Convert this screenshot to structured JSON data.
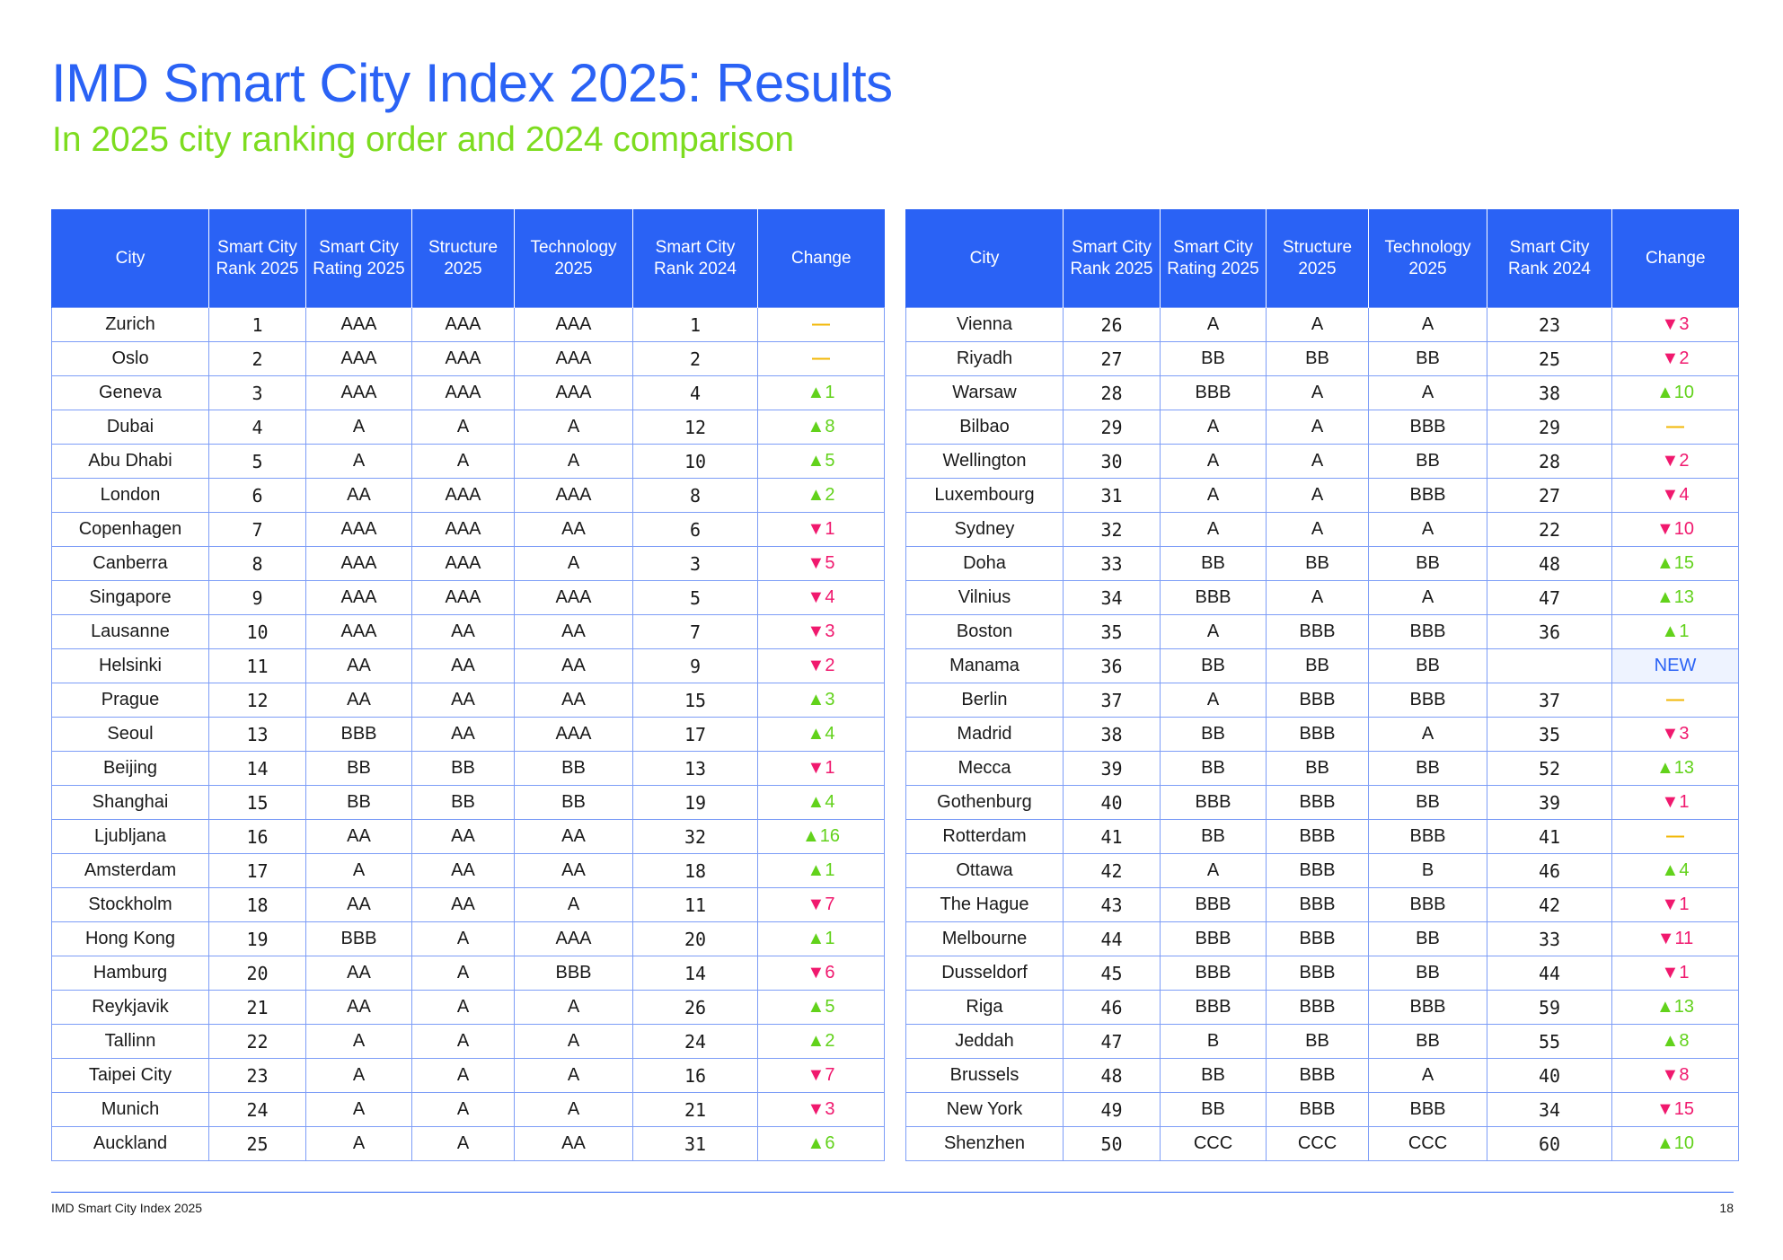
{
  "title": "IMD Smart City Index 2025: Results",
  "subtitle": "In 2025 city ranking order and 2024 comparison",
  "colors": {
    "accent": "#2a62f5",
    "subtitle": "#7ddc1f",
    "up": "#62d21b",
    "down": "#f0196e",
    "same": "#f2b705"
  },
  "headers": [
    "City",
    "Smart City Rank 2025",
    "Smart City Rating 2025",
    "Structure 2025",
    "Technology 2025",
    "Smart City Rank 2024",
    "Change"
  ],
  "left_rows": [
    {
      "city": "Zurich",
      "rank": "1",
      "rating": "AAA",
      "structure": "AAA",
      "technology": "AAA",
      "rank2024": "1",
      "change": "—",
      "dir": "same"
    },
    {
      "city": "Oslo",
      "rank": "2",
      "rating": "AAA",
      "structure": "AAA",
      "technology": "AAA",
      "rank2024": "2",
      "change": "—",
      "dir": "same"
    },
    {
      "city": "Geneva",
      "rank": "3",
      "rating": "AAA",
      "structure": "AAA",
      "technology": "AAA",
      "rank2024": "4",
      "change": "▲1",
      "dir": "up"
    },
    {
      "city": "Dubai",
      "rank": "4",
      "rating": "A",
      "structure": "A",
      "technology": "A",
      "rank2024": "12",
      "change": "▲8",
      "dir": "up"
    },
    {
      "city": "Abu Dhabi",
      "rank": "5",
      "rating": "A",
      "structure": "A",
      "technology": "A",
      "rank2024": "10",
      "change": "▲5",
      "dir": "up"
    },
    {
      "city": "London",
      "rank": "6",
      "rating": "AA",
      "structure": "AAA",
      "technology": "AAA",
      "rank2024": "8",
      "change": "▲2",
      "dir": "up"
    },
    {
      "city": "Copenhagen",
      "rank": "7",
      "rating": "AAA",
      "structure": "AAA",
      "technology": "AA",
      "rank2024": "6",
      "change": "▼1",
      "dir": "down"
    },
    {
      "city": "Canberra",
      "rank": "8",
      "rating": "AAA",
      "structure": "AAA",
      "technology": "A",
      "rank2024": "3",
      "change": "▼5",
      "dir": "down"
    },
    {
      "city": "Singapore",
      "rank": "9",
      "rating": "AAA",
      "structure": "AAA",
      "technology": "AAA",
      "rank2024": "5",
      "change": "▼4",
      "dir": "down"
    },
    {
      "city": "Lausanne",
      "rank": "10",
      "rating": "AAA",
      "structure": "AA",
      "technology": "AA",
      "rank2024": "7",
      "change": "▼3",
      "dir": "down"
    },
    {
      "city": "Helsinki",
      "rank": "11",
      "rating": "AA",
      "structure": "AA",
      "technology": "AA",
      "rank2024": "9",
      "change": "▼2",
      "dir": "down"
    },
    {
      "city": "Prague",
      "rank": "12",
      "rating": "AA",
      "structure": "AA",
      "technology": "AA",
      "rank2024": "15",
      "change": "▲3",
      "dir": "up"
    },
    {
      "city": "Seoul",
      "rank": "13",
      "rating": "BBB",
      "structure": "AA",
      "technology": "AAA",
      "rank2024": "17",
      "change": "▲4",
      "dir": "up"
    },
    {
      "city": "Beijing",
      "rank": "14",
      "rating": "BB",
      "structure": "BB",
      "technology": "BB",
      "rank2024": "13",
      "change": "▼1",
      "dir": "down"
    },
    {
      "city": "Shanghai",
      "rank": "15",
      "rating": "BB",
      "structure": "BB",
      "technology": "BB",
      "rank2024": "19",
      "change": "▲4",
      "dir": "up"
    },
    {
      "city": "Ljubljana",
      "rank": "16",
      "rating": "AA",
      "structure": "AA",
      "technology": "AA",
      "rank2024": "32",
      "change": "▲16",
      "dir": "up"
    },
    {
      "city": "Amsterdam",
      "rank": "17",
      "rating": "A",
      "structure": "AA",
      "technology": "AA",
      "rank2024": "18",
      "change": "▲1",
      "dir": "up"
    },
    {
      "city": "Stockholm",
      "rank": "18",
      "rating": "AA",
      "structure": "AA",
      "technology": "A",
      "rank2024": "11",
      "change": "▼7",
      "dir": "down"
    },
    {
      "city": "Hong Kong",
      "rank": "19",
      "rating": "BBB",
      "structure": "A",
      "technology": "AAA",
      "rank2024": "20",
      "change": "▲1",
      "dir": "up"
    },
    {
      "city": "Hamburg",
      "rank": "20",
      "rating": "AA",
      "structure": "A",
      "technology": "BBB",
      "rank2024": "14",
      "change": "▼6",
      "dir": "down"
    },
    {
      "city": "Reykjavik",
      "rank": "21",
      "rating": "AA",
      "structure": "A",
      "technology": "A",
      "rank2024": "26",
      "change": "▲5",
      "dir": "up"
    },
    {
      "city": "Tallinn",
      "rank": "22",
      "rating": "A",
      "structure": "A",
      "technology": "A",
      "rank2024": "24",
      "change": "▲2",
      "dir": "up"
    },
    {
      "city": "Taipei City",
      "rank": "23",
      "rating": "A",
      "structure": "A",
      "technology": "A",
      "rank2024": "16",
      "change": "▼7",
      "dir": "down"
    },
    {
      "city": "Munich",
      "rank": "24",
      "rating": "A",
      "structure": "A",
      "technology": "A",
      "rank2024": "21",
      "change": "▼3",
      "dir": "down"
    },
    {
      "city": "Auckland",
      "rank": "25",
      "rating": "A",
      "structure": "A",
      "technology": "AA",
      "rank2024": "31",
      "change": "▲6",
      "dir": "up"
    }
  ],
  "right_rows": [
    {
      "city": "Vienna",
      "rank": "26",
      "rating": "A",
      "structure": "A",
      "technology": "A",
      "rank2024": "23",
      "change": "▼3",
      "dir": "down"
    },
    {
      "city": "Riyadh",
      "rank": "27",
      "rating": "BB",
      "structure": "BB",
      "technology": "BB",
      "rank2024": "25",
      "change": "▼2",
      "dir": "down"
    },
    {
      "city": "Warsaw",
      "rank": "28",
      "rating": "BBB",
      "structure": "A",
      "technology": "A",
      "rank2024": "38",
      "change": "▲10",
      "dir": "up"
    },
    {
      "city": "Bilbao",
      "rank": "29",
      "rating": "A",
      "structure": "A",
      "technology": "BBB",
      "rank2024": "29",
      "change": "—",
      "dir": "same"
    },
    {
      "city": "Wellington",
      "rank": "30",
      "rating": "A",
      "structure": "A",
      "technology": "BB",
      "rank2024": "28",
      "change": "▼2",
      "dir": "down"
    },
    {
      "city": "Luxembourg",
      "rank": "31",
      "rating": "A",
      "structure": "A",
      "technology": "BBB",
      "rank2024": "27",
      "change": "▼4",
      "dir": "down"
    },
    {
      "city": "Sydney",
      "rank": "32",
      "rating": "A",
      "structure": "A",
      "technology": "A",
      "rank2024": "22",
      "change": "▼10",
      "dir": "down"
    },
    {
      "city": "Doha",
      "rank": "33",
      "rating": "BB",
      "structure": "BB",
      "technology": "BB",
      "rank2024": "48",
      "change": "▲15",
      "dir": "up"
    },
    {
      "city": "Vilnius",
      "rank": "34",
      "rating": "BBB",
      "structure": "A",
      "technology": "A",
      "rank2024": "47",
      "change": "▲13",
      "dir": "up"
    },
    {
      "city": "Boston",
      "rank": "35",
      "rating": "A",
      "structure": "BBB",
      "technology": "BBB",
      "rank2024": "36",
      "change": "▲1",
      "dir": "up"
    },
    {
      "city": "Manama",
      "rank": "36",
      "rating": "BB",
      "structure": "BB",
      "technology": "BB",
      "rank2024": "",
      "change": "NEW",
      "dir": "new"
    },
    {
      "city": "Berlin",
      "rank": "37",
      "rating": "A",
      "structure": "BBB",
      "technology": "BBB",
      "rank2024": "37",
      "change": "—",
      "dir": "same"
    },
    {
      "city": "Madrid",
      "rank": "38",
      "rating": "BB",
      "structure": "BBB",
      "technology": "A",
      "rank2024": "35",
      "change": "▼3",
      "dir": "down"
    },
    {
      "city": "Mecca",
      "rank": "39",
      "rating": "BB",
      "structure": "BB",
      "technology": "BB",
      "rank2024": "52",
      "change": "▲13",
      "dir": "up"
    },
    {
      "city": "Gothenburg",
      "rank": "40",
      "rating": "BBB",
      "structure": "BBB",
      "technology": "BB",
      "rank2024": "39",
      "change": "▼1",
      "dir": "down"
    },
    {
      "city": "Rotterdam",
      "rank": "41",
      "rating": "BB",
      "structure": "BBB",
      "technology": "BBB",
      "rank2024": "41",
      "change": "—",
      "dir": "same"
    },
    {
      "city": "Ottawa",
      "rank": "42",
      "rating": "A",
      "structure": "BBB",
      "technology": "B",
      "rank2024": "46",
      "change": "▲4",
      "dir": "up"
    },
    {
      "city": "The Hague",
      "rank": "43",
      "rating": "BBB",
      "structure": "BBB",
      "technology": "BBB",
      "rank2024": "42",
      "change": "▼1",
      "dir": "down"
    },
    {
      "city": "Melbourne",
      "rank": "44",
      "rating": "BBB",
      "structure": "BBB",
      "technology": "BB",
      "rank2024": "33",
      "change": "▼11",
      "dir": "down"
    },
    {
      "city": "Dusseldorf",
      "rank": "45",
      "rating": "BBB",
      "structure": "BBB",
      "technology": "BB",
      "rank2024": "44",
      "change": "▼1",
      "dir": "down"
    },
    {
      "city": "Riga",
      "rank": "46",
      "rating": "BBB",
      "structure": "BBB",
      "technology": "BBB",
      "rank2024": "59",
      "change": "▲13",
      "dir": "up"
    },
    {
      "city": "Jeddah",
      "rank": "47",
      "rating": "B",
      "structure": "BB",
      "technology": "BB",
      "rank2024": "55",
      "change": "▲8",
      "dir": "up"
    },
    {
      "city": "Brussels",
      "rank": "48",
      "rating": "BB",
      "structure": "BBB",
      "technology": "A",
      "rank2024": "40",
      "change": "▼8",
      "dir": "down"
    },
    {
      "city": "New York",
      "rank": "49",
      "rating": "BB",
      "structure": "BBB",
      "technology": "BBB",
      "rank2024": "34",
      "change": "▼15",
      "dir": "down"
    },
    {
      "city": "Shenzhen",
      "rank": "50",
      "rating": "CCC",
      "structure": "CCC",
      "technology": "CCC",
      "rank2024": "60",
      "change": "▲10",
      "dir": "up"
    }
  ],
  "footer": {
    "text": "IMD Smart City Index 2025",
    "page": "18"
  }
}
